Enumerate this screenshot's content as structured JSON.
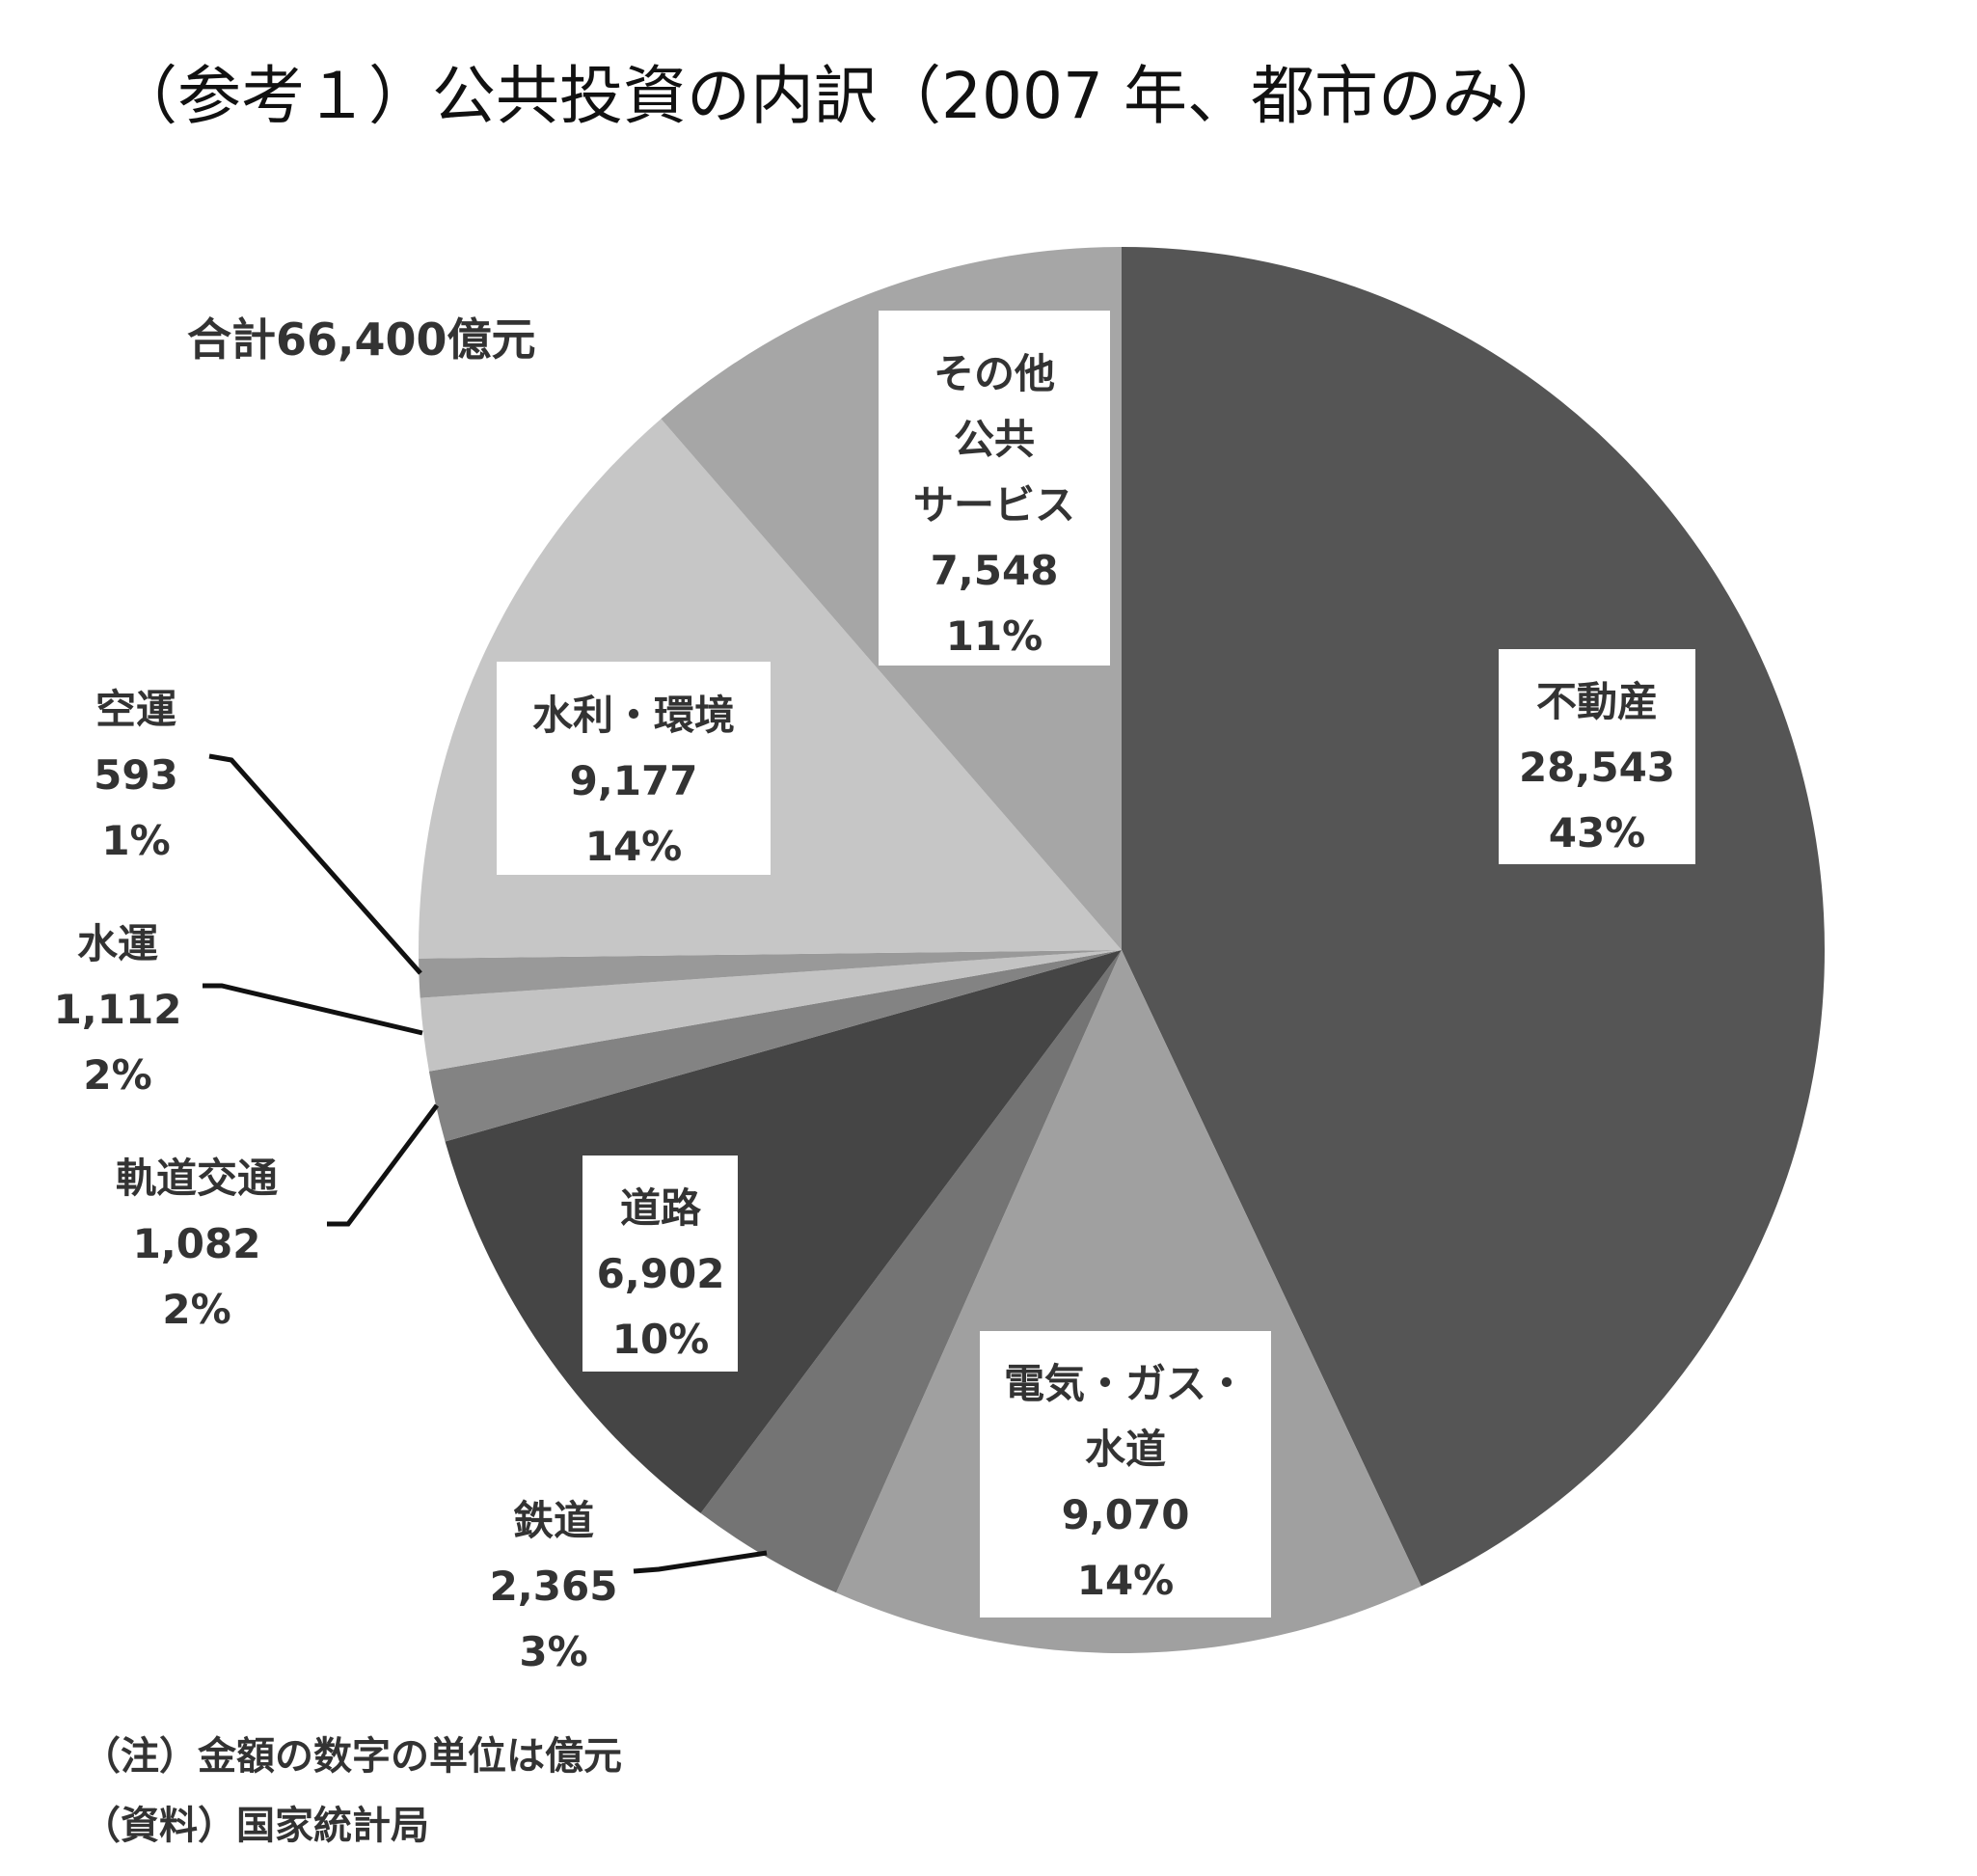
{
  "chart_data": {
    "type": "pie",
    "title": "（参考１）公共投資の内訳（2007 年、都市のみ）",
    "total_label": "合計66,400億元",
    "start": "12 o'clock, clockwise",
    "slices": [
      {
        "name": "不動産",
        "name_lines": [
          "不動産"
        ],
        "value": 28543,
        "value_label": "28,543",
        "percent": "43%",
        "color": "#555555",
        "label_position": "inside"
      },
      {
        "name": "電気・ガス・水道",
        "name_lines": [
          "電気・ガス・",
          "水道"
        ],
        "value": 9070,
        "value_label": "9,070",
        "percent": "14%",
        "color": "#a0a0a0",
        "label_position": "inside"
      },
      {
        "name": "鉄道",
        "name_lines": [
          "鉄道"
        ],
        "value": 2365,
        "value_label": "2,365",
        "percent": "3%",
        "color": "#747474",
        "label_position": "outside"
      },
      {
        "name": "道路",
        "name_lines": [
          "道路"
        ],
        "value": 6902,
        "value_label": "6,902",
        "percent": "10%",
        "color": "#454545",
        "label_position": "inside"
      },
      {
        "name": "軌道交通",
        "name_lines": [
          "軌道交通"
        ],
        "value": 1082,
        "value_label": "1,082",
        "percent": "2%",
        "color": "#838383",
        "label_position": "outside"
      },
      {
        "name": "水運",
        "name_lines": [
          "水運"
        ],
        "value": 1112,
        "value_label": "1,112",
        "percent": "2%",
        "color": "#c3c3c3",
        "label_position": "outside"
      },
      {
        "name": "空運",
        "name_lines": [
          "空運"
        ],
        "value": 593,
        "value_label": "593",
        "percent": "1%",
        "color": "#999999",
        "label_position": "outside"
      },
      {
        "name": "水利・環境",
        "name_lines": [
          "水利・環境"
        ],
        "value": 9177,
        "value_label": "9,177",
        "percent": "14%",
        "color": "#c6c6c6",
        "label_position": "inside"
      },
      {
        "name": "その他公共サービス",
        "name_lines": [
          "その他",
          "公共",
          "サービス"
        ],
        "value": 7548,
        "value_label": "7,548",
        "percent": "11%",
        "color": "#a6a6a6",
        "label_position": "inside"
      }
    ]
  },
  "notes": [
    "（注）金額の数字の単位は億元",
    "（資料）国家統計局"
  ]
}
